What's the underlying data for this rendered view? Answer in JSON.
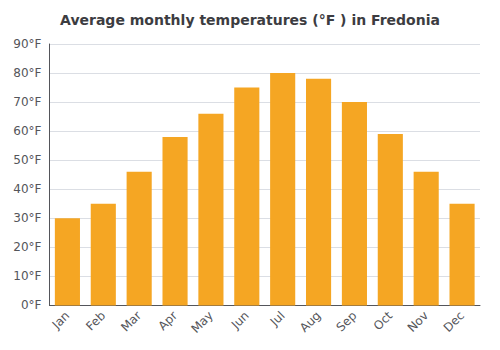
{
  "chart_data": {
    "type": "bar",
    "title": "Average monthly temperatures (°F ) in Fredonia",
    "categories": [
      "Jan",
      "Feb",
      "Mar",
      "Apr",
      "May",
      "Jun",
      "Jul",
      "Aug",
      "Sep",
      "Oct",
      "Nov",
      "Dec"
    ],
    "values": [
      30,
      35,
      46,
      58,
      66,
      75,
      80,
      78,
      70,
      59,
      46,
      35
    ],
    "color": "#F5A623",
    "ylim": [
      0,
      90
    ],
    "yticks": [
      {
        "value": 0,
        "label": "0°F"
      },
      {
        "value": 10,
        "label": "10°F"
      },
      {
        "value": 20,
        "label": "20°F"
      },
      {
        "value": 30,
        "label": "30°F"
      },
      {
        "value": 40,
        "label": "40°F"
      },
      {
        "value": 50,
        "label": "50°F"
      },
      {
        "value": 60,
        "label": "60°F"
      },
      {
        "value": 70,
        "label": "70°F"
      },
      {
        "value": 80,
        "label": "80°F"
      },
      {
        "value": 90,
        "label": "90°F"
      }
    ],
    "grid": true
  }
}
